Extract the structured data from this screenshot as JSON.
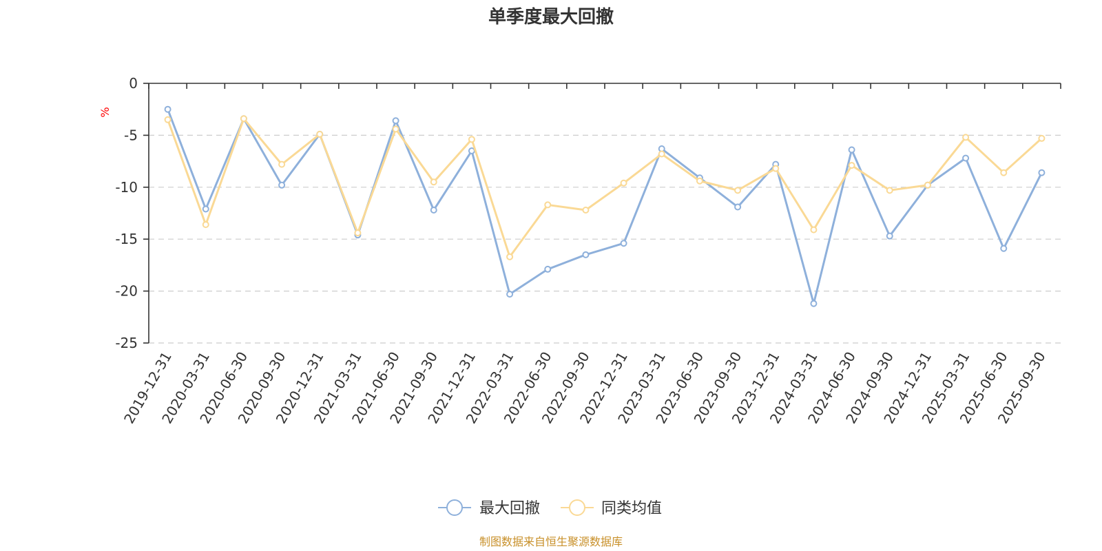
{
  "chart_data": {
    "type": "line",
    "title": "单季度最大回撤",
    "unit": "%",
    "categories": [
      "2019-12-31",
      "2020-03-31",
      "2020-06-30",
      "2020-09-30",
      "2020-12-31",
      "2021-03-31",
      "2021-06-30",
      "2021-09-30",
      "2021-12-31",
      "2022-03-31",
      "2022-06-30",
      "2022-09-30",
      "2022-12-31",
      "2023-03-31",
      "2023-06-30",
      "2023-09-30",
      "2023-12-31",
      "2024-03-31",
      "2024-06-30",
      "2024-09-30",
      "2024-12-31",
      "2025-03-31",
      "2025-06-30",
      "2025-09-30"
    ],
    "series": [
      {
        "name": "最大回撤",
        "color": "#8eb0db",
        "values": [
          -2.5,
          -12.1,
          -3.4,
          -9.8,
          -4.9,
          -14.6,
          -3.6,
          -12.2,
          -6.5,
          -20.3,
          -17.9,
          -16.5,
          -15.4,
          -6.3,
          -9.1,
          -11.9,
          -7.8,
          -21.2,
          -6.4,
          -14.7,
          -9.8,
          -7.2,
          -15.9,
          -8.6
        ]
      },
      {
        "name": "同类均值",
        "color": "#fad995",
        "values": [
          -3.5,
          -13.6,
          -3.4,
          -7.8,
          -4.9,
          -14.4,
          -4.4,
          -9.5,
          -5.4,
          -16.7,
          -11.7,
          -12.2,
          -9.6,
          -6.8,
          -9.4,
          -10.3,
          -8.2,
          -14.1,
          -7.9,
          -10.3,
          -9.8,
          -5.2,
          -8.6,
          -5.3
        ]
      }
    ],
    "yaxis": {
      "min": -25,
      "max": 0,
      "ticks": [
        "0",
        "-5",
        "-10",
        "-15",
        "-20",
        "-25"
      ]
    },
    "grid": "dashed-horizontal",
    "legend": "bottom-center"
  },
  "source_text": "制图数据来自恒生聚源数据库"
}
